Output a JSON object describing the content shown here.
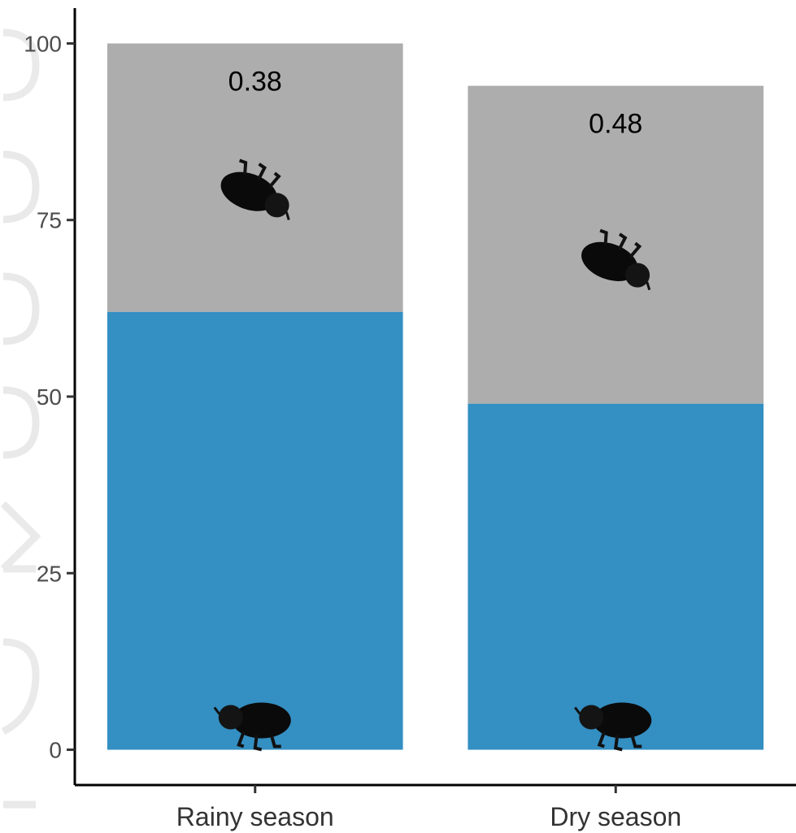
{
  "chart_data": {
    "type": "bar",
    "stacked": true,
    "categories": [
      "Rainy season",
      "Dry season"
    ],
    "series": [
      {
        "values": [
          62,
          49
        ],
        "color": "#348fc2",
        "icon": "beetle-alive-icon"
      },
      {
        "values": [
          38,
          45
        ],
        "color": "#adadad",
        "icon": "beetle-dead-icon"
      }
    ],
    "data_labels": [
      "0.38",
      "0.48"
    ],
    "yticks": [
      0,
      25,
      50,
      75,
      100
    ],
    "ytick_labels": [
      "0",
      "25",
      "50",
      "75",
      "100"
    ],
    "ylim": [
      -5,
      105
    ],
    "title": "",
    "xlabel": "",
    "ylabel": "",
    "grid": false,
    "legend": "none"
  }
}
